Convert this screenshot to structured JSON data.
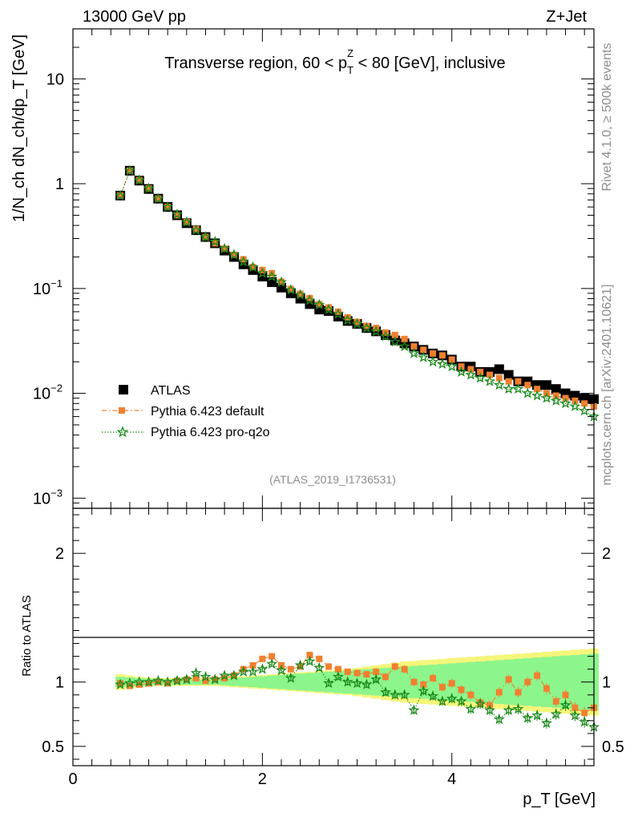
{
  "header": {
    "energy_label": "13000 GeV pp",
    "process_label": "Z+Jet",
    "rivet_label": "Rivet 4.1.0, ≥ 500k events",
    "mcplots_label": "mcplots.cern.ch [arXiv:2401.10621]"
  },
  "chart_data": {
    "type": "scatter",
    "title": "Transverse region, 60 < p_T^Z < 80 [GeV], inclusive",
    "title_pre": "Transverse region, 60 < p",
    "title_sub": "T",
    "title_sup": "Z",
    "title_post": " < 80 [GeV], inclusive",
    "analysis_id": "(ATLAS_2019_I1736531)",
    "xlabel": "p_T [GeV]",
    "ylabel": "1/N_ch dN_ch/dp_T [GeV]",
    "ratio_ylabel": "Ratio to ATLAS",
    "xlim": [
      0,
      5.5
    ],
    "ylim": [
      0.0008,
      30
    ],
    "ratio_ylim": [
      0.35,
      2.35
    ],
    "x_ticks": [
      "0",
      "2",
      "4"
    ],
    "y_ticks": [
      "10^-3",
      "10^-2",
      "10^-1",
      "1",
      "10"
    ],
    "ratio_ticks": [
      "0.5",
      "1",
      "2"
    ],
    "x": [
      0.5,
      0.6,
      0.7,
      0.8,
      0.9,
      1.0,
      1.1,
      1.2,
      1.3,
      1.4,
      1.5,
      1.6,
      1.7,
      1.8,
      1.9,
      2.0,
      2.1,
      2.2,
      2.3,
      2.4,
      2.5,
      2.6,
      2.7,
      2.8,
      2.9,
      3.0,
      3.1,
      3.2,
      3.3,
      3.4,
      3.5,
      3.6,
      3.7,
      3.8,
      3.9,
      4.0,
      4.1,
      4.2,
      4.3,
      4.4,
      4.5,
      4.6,
      4.7,
      4.8,
      4.9,
      5.0,
      5.1,
      5.2,
      5.3,
      5.4,
      5.5
    ],
    "series": [
      {
        "name": "ATLAS",
        "color": "#000000",
        "values": [
          0.77,
          1.33,
          1.07,
          0.89,
          0.72,
          0.6,
          0.5,
          0.42,
          0.36,
          0.31,
          0.27,
          0.23,
          0.2,
          0.17,
          0.15,
          0.13,
          0.115,
          0.102,
          0.09,
          0.08,
          0.071,
          0.063,
          0.061,
          0.054,
          0.049,
          0.046,
          0.042,
          0.039,
          0.036,
          0.032,
          0.03,
          0.028,
          0.026,
          0.024,
          0.023,
          0.021,
          0.018,
          0.018,
          0.016,
          0.016,
          0.017,
          0.015,
          0.013,
          0.013,
          0.012,
          0.012,
          0.011,
          0.01,
          0.0095,
          0.009,
          0.0088
        ],
        "band_inner": [
          0.04,
          0.035,
          0.03,
          0.025,
          0.022,
          0.02,
          0.02,
          0.02,
          0.02,
          0.02,
          0.02,
          0.025,
          0.03,
          0.035,
          0.04,
          0.045,
          0.05,
          0.055,
          0.06,
          0.065,
          0.07,
          0.075,
          0.08,
          0.085,
          0.09,
          0.095,
          0.1,
          0.105,
          0.11,
          0.115,
          0.12,
          0.125,
          0.13,
          0.135,
          0.14,
          0.145,
          0.15,
          0.155,
          0.16,
          0.165,
          0.17,
          0.175,
          0.18,
          0.185,
          0.19,
          0.195,
          0.2,
          0.205,
          0.21,
          0.215,
          0.22
        ],
        "band_outer": [
          0.06,
          0.05,
          0.04,
          0.035,
          0.03,
          0.03,
          0.03,
          0.03,
          0.03,
          0.03,
          0.03,
          0.035,
          0.04,
          0.045,
          0.05,
          0.055,
          0.06,
          0.065,
          0.07,
          0.075,
          0.08,
          0.085,
          0.09,
          0.095,
          0.1,
          0.11,
          0.12,
          0.13,
          0.14,
          0.15,
          0.16,
          0.165,
          0.17,
          0.175,
          0.18,
          0.185,
          0.19,
          0.195,
          0.2,
          0.205,
          0.21,
          0.215,
          0.22,
          0.225,
          0.23,
          0.235,
          0.24,
          0.245,
          0.25,
          0.255,
          0.26
        ]
      },
      {
        "name": "Pythia 6.423 default",
        "color": "#f08030",
        "values": [
          0.77,
          1.33,
          1.08,
          0.9,
          0.72,
          0.6,
          0.5,
          0.43,
          0.37,
          0.31,
          0.27,
          0.24,
          0.21,
          0.19,
          0.16,
          0.15,
          0.14,
          0.116,
          0.099,
          0.089,
          0.081,
          0.071,
          0.066,
          0.06,
          0.053,
          0.048,
          0.044,
          0.042,
          0.038,
          0.036,
          0.033,
          0.028,
          0.026,
          0.024,
          0.023,
          0.021,
          0.018,
          0.017,
          0.016,
          0.015,
          0.014,
          0.013,
          0.013,
          0.012,
          0.011,
          0.01,
          0.0095,
          0.009,
          0.0085,
          0.008,
          0.0075
        ],
        "ratio": [
          0.99,
          0.97,
          0.98,
          0.99,
          1.0,
          0.99,
          1.01,
          1.02,
          1.03,
          1.01,
          1.02,
          1.03,
          1.05,
          1.1,
          1.13,
          1.18,
          1.2,
          1.13,
          1.1,
          1.12,
          1.21,
          1.18,
          1.12,
          1.1,
          1.08,
          1.07,
          1.06,
          1.08,
          1.04,
          1.12,
          1.1,
          1.0,
          0.98,
          1.03,
          0.96,
          0.99,
          0.94,
          0.9,
          0.84,
          0.82,
          0.92,
          1.02,
          0.92,
          1.0,
          1.05,
          0.95,
          0.85,
          0.9,
          0.8,
          0.76,
          0.8
        ]
      },
      {
        "name": "Pythia 6.423 pro-q2o",
        "color": "#1a8a1a",
        "values": [
          0.77,
          1.33,
          1.08,
          0.9,
          0.72,
          0.6,
          0.51,
          0.43,
          0.36,
          0.31,
          0.28,
          0.24,
          0.21,
          0.18,
          0.16,
          0.14,
          0.13,
          0.115,
          0.097,
          0.087,
          0.077,
          0.07,
          0.063,
          0.057,
          0.05,
          0.046,
          0.042,
          0.039,
          0.035,
          0.031,
          0.028,
          0.024,
          0.022,
          0.02,
          0.019,
          0.018,
          0.016,
          0.015,
          0.014,
          0.013,
          0.012,
          0.011,
          0.011,
          0.01,
          0.0095,
          0.009,
          0.0085,
          0.008,
          0.0075,
          0.0068,
          0.006
        ],
        "ratio": [
          0.98,
          0.99,
          1.0,
          1.0,
          1.01,
          1.0,
          1.01,
          1.02,
          1.07,
          1.04,
          1.02,
          1.05,
          1.05,
          1.08,
          1.08,
          1.1,
          1.14,
          1.09,
          1.03,
          1.13,
          1.16,
          1.11,
          0.99,
          1.04,
          1.0,
          0.99,
          0.98,
          1.02,
          0.92,
          0.9,
          0.9,
          0.78,
          0.93,
          0.89,
          0.85,
          0.87,
          0.85,
          0.79,
          0.83,
          0.78,
          0.71,
          0.78,
          0.79,
          0.72,
          0.74,
          0.68,
          0.75,
          0.82,
          0.74,
          0.69,
          0.65
        ]
      }
    ]
  }
}
